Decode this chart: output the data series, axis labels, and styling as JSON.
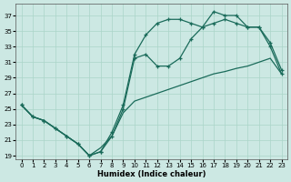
{
  "xlabel": "Humidex (Indice chaleur)",
  "bg_color": "#cce8e3",
  "line_color": "#1a6b5a",
  "grid_color": "#aad5c8",
  "xlim": [
    -0.5,
    23.5
  ],
  "ylim": [
    18.5,
    38.5
  ],
  "yticks": [
    19,
    21,
    23,
    25,
    27,
    29,
    31,
    33,
    35,
    37
  ],
  "xticks": [
    0,
    1,
    2,
    3,
    4,
    5,
    6,
    7,
    8,
    9,
    10,
    11,
    12,
    13,
    14,
    15,
    16,
    17,
    18,
    19,
    20,
    21,
    22,
    23
  ],
  "upper_x": [
    0,
    1,
    2,
    3,
    4,
    5,
    6,
    7,
    8,
    9,
    10,
    11,
    12,
    13,
    14,
    15,
    16,
    17,
    18,
    19,
    20,
    21,
    22,
    23
  ],
  "upper_y": [
    25.5,
    24.0,
    23.5,
    22.5,
    21.5,
    20.5,
    19.0,
    19.5,
    22.0,
    25.5,
    32.0,
    34.5,
    36.0,
    36.5,
    36.5,
    36.0,
    35.5,
    37.5,
    37.0,
    37.0,
    35.5,
    35.5,
    33.0,
    29.5
  ],
  "mid_x": [
    0,
    1,
    2,
    3,
    4,
    5,
    6,
    7,
    8,
    9,
    10,
    11,
    12,
    13,
    14,
    15,
    16,
    17,
    18,
    19,
    20,
    21,
    22,
    23
  ],
  "mid_y": [
    25.5,
    24.0,
    23.5,
    22.5,
    21.5,
    20.5,
    19.0,
    19.5,
    21.5,
    25.0,
    31.5,
    32.0,
    30.5,
    30.5,
    31.5,
    34.0,
    35.5,
    36.0,
    36.5,
    36.0,
    35.5,
    35.5,
    33.5,
    30.0
  ],
  "lower_x": [
    0,
    1,
    2,
    3,
    4,
    5,
    6,
    7,
    8,
    9,
    10,
    11,
    12,
    13,
    14,
    15,
    16,
    17,
    18,
    19,
    20,
    21,
    22,
    23
  ],
  "lower_y": [
    25.5,
    24.0,
    23.5,
    22.5,
    21.5,
    20.5,
    19.0,
    20.0,
    21.5,
    24.5,
    26.0,
    26.5,
    27.0,
    27.5,
    28.0,
    28.5,
    29.0,
    29.5,
    29.8,
    30.2,
    30.5,
    31.0,
    31.5,
    29.5
  ],
  "upper_marker_x": [
    0,
    1,
    2,
    3,
    4,
    5,
    6,
    7,
    8,
    9,
    10,
    11,
    12,
    13,
    14,
    15,
    16,
    17,
    18,
    19,
    20,
    21,
    22,
    23
  ],
  "mid_marker_x": [
    0,
    1,
    2,
    3,
    4,
    5,
    6,
    7,
    8,
    9,
    10,
    11,
    12,
    13,
    14,
    15,
    16,
    17,
    18,
    19,
    20,
    21,
    22,
    23
  ]
}
